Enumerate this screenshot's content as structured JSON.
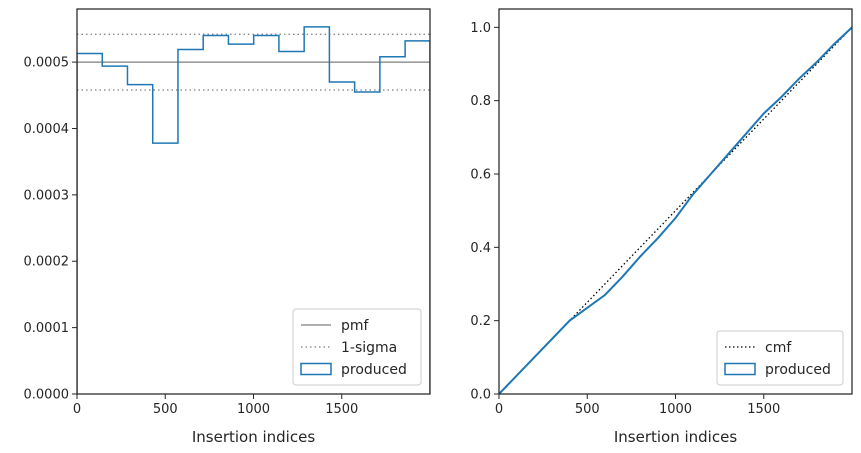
{
  "colors": {
    "produced": "#1f77b4",
    "pmf": "#7f7f7f",
    "sigma": "#7f7f7f",
    "cmf": "#000000",
    "axes": "#262626"
  },
  "chart_data": [
    {
      "type": "line",
      "drawstyle": "steps-post",
      "xlabel": "Insertion indices",
      "ylabel": "",
      "xlim": [
        0,
        2000
      ],
      "ylim": [
        0,
        0.00058
      ],
      "xticks": [
        0,
        500,
        1000,
        1500
      ],
      "xticklabels": [
        "0",
        "500",
        "1000",
        "1500"
      ],
      "yticks": [
        0,
        0.0001,
        0.0002,
        0.0003,
        0.0004,
        0.0005
      ],
      "yticklabels": [
        "0.0000",
        "0.0001",
        "0.0002",
        "0.0003",
        "0.0004",
        "0.0005"
      ],
      "grid": false,
      "legend_position": "lower-right",
      "legend": [
        "pmf",
        "1-sigma",
        "produced"
      ],
      "hlines": [
        {
          "name": "pmf",
          "y": 0.0005,
          "style": "solid"
        },
        {
          "name": "1-sigma",
          "y": 0.000542,
          "style": "dotted"
        },
        {
          "name": "1-sigma",
          "y": 0.000458,
          "style": "dotted"
        }
      ],
      "series": [
        {
          "name": "produced",
          "bin_edges": [
            0,
            143,
            286,
            429,
            572,
            715,
            858,
            1001,
            1144,
            1287,
            1430,
            1573,
            1716,
            1859,
            2000
          ],
          "values": [
            0.000513,
            0.000494,
            0.000466,
            0.000378,
            0.000519,
            0.00054,
            0.000527,
            0.00054,
            0.000516,
            0.000553,
            0.00047,
            0.000455,
            0.000508,
            0.000532
          ]
        }
      ]
    },
    {
      "type": "line",
      "xlabel": "Insertion indices",
      "ylabel": "",
      "xlim": [
        0,
        2000
      ],
      "ylim": [
        0,
        1.05
      ],
      "xticks": [
        0,
        500,
        1000,
        1500
      ],
      "xticklabels": [
        "0",
        "500",
        "1000",
        "1500"
      ],
      "yticks": [
        0,
        0.2,
        0.4,
        0.6,
        0.8,
        1.0
      ],
      "yticklabels": [
        "0.0",
        "0.2",
        "0.4",
        "0.6",
        "0.8",
        "1.0"
      ],
      "grid": false,
      "legend_position": "lower-right",
      "legend": [
        "cmf",
        "produced"
      ],
      "series": [
        {
          "name": "cmf",
          "style": "dotted",
          "x": [
            0,
            2000
          ],
          "y": [
            0,
            1.0
          ]
        },
        {
          "name": "produced",
          "x": [
            0,
            100,
            200,
            300,
            400,
            500,
            600,
            700,
            800,
            900,
            1000,
            1100,
            1200,
            1300,
            1400,
            1500,
            1600,
            1700,
            1800,
            1900,
            2000
          ],
          "y": [
            0,
            0.05,
            0.1,
            0.15,
            0.2,
            0.235,
            0.27,
            0.32,
            0.375,
            0.425,
            0.48,
            0.545,
            0.6,
            0.655,
            0.71,
            0.765,
            0.81,
            0.86,
            0.905,
            0.955,
            1.0
          ]
        }
      ]
    }
  ]
}
